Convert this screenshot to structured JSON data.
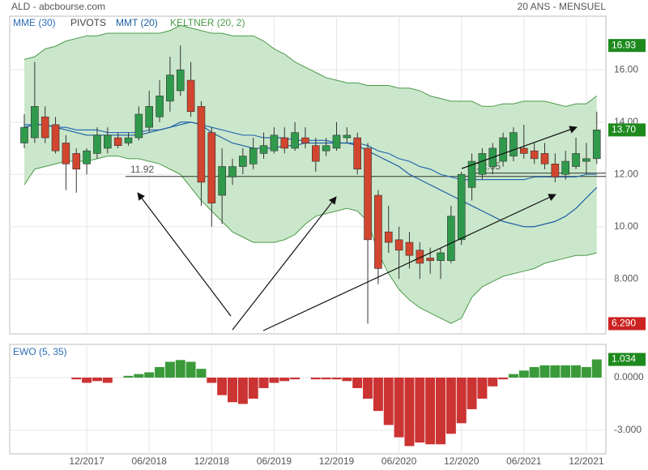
{
  "header": {
    "left": "ALD - abcbourse.com",
    "right": "20 ANS - MENSUEL"
  },
  "chart_data": {
    "type": "candlestick",
    "categories": [
      null,
      null,
      null,
      null,
      null,
      null,
      "12/2017",
      null,
      null,
      null,
      null,
      null,
      "06/2018",
      null,
      null,
      null,
      null,
      null,
      "12/2018",
      null,
      null,
      null,
      null,
      null,
      "06/2019",
      null,
      null,
      null,
      null,
      null,
      "12/2019",
      null,
      null,
      null,
      null,
      null,
      "06/2020",
      null,
      null,
      null,
      null,
      null,
      "12/2020",
      null,
      null,
      null,
      null,
      null,
      "06/2021",
      null,
      null,
      null,
      null,
      null,
      "12/2021",
      null
    ],
    "open": [
      13.2,
      13.4,
      14.2,
      13.9,
      13.2,
      12.8,
      12.4,
      12.8,
      13.0,
      13.4,
      13.2,
      13.4,
      13.8,
      14.2,
      14.8,
      15.2,
      15.6,
      14.6,
      13.6,
      11.2,
      11.9,
      12.3,
      12.4,
      12.8,
      12.9,
      13.4,
      13.0,
      13.4,
      13.1,
      12.9,
      13.0,
      13.4,
      13.4,
      13.0,
      11.2,
      9.8,
      9.5,
      9.4,
      9.1,
      8.8,
      8.7,
      8.7,
      9.5,
      11.5,
      12.0,
      12.3,
      12.5,
      12.7,
      13.0,
      12.9,
      12.8,
      12.4,
      12.0,
      12.3,
      12.5,
      12.6
    ],
    "high": [
      14.3,
      16.3,
      14.6,
      14.2,
      13.5,
      13.0,
      13.0,
      13.8,
      13.8,
      13.6,
      13.6,
      14.6,
      15.2,
      15.6,
      16.5,
      16.93,
      16.3,
      14.8,
      13.8,
      13.0,
      12.6,
      13.0,
      13.4,
      13.6,
      13.8,
      13.8,
      14.0,
      13.8,
      13.4,
      13.4,
      14.0,
      13.8,
      13.6,
      13.2,
      11.4,
      10.8,
      10.0,
      9.8,
      9.4,
      9.2,
      9.2,
      10.8,
      12.1,
      12.8,
      13.0,
      13.2,
      13.6,
      13.8,
      13.9,
      13.2,
      13.2,
      12.8,
      12.9,
      13.4,
      13.2,
      14.4
    ],
    "low": [
      13.0,
      13.2,
      13.2,
      12.8,
      11.4,
      11.3,
      12.0,
      12.6,
      12.8,
      13.0,
      13.1,
      13.3,
      13.6,
      14.0,
      14.4,
      15.0,
      14.2,
      10.8,
      10.0,
      10.1,
      11.6,
      12.0,
      12.2,
      12.6,
      12.8,
      12.8,
      12.9,
      13.0,
      12.1,
      12.7,
      12.9,
      13.2,
      12.0,
      6.29,
      7.8,
      9.0,
      8.0,
      8.4,
      8.0,
      8.2,
      8.0,
      8.6,
      9.3,
      11.0,
      11.8,
      12.0,
      12.3,
      12.5,
      12.6,
      12.4,
      12.2,
      11.7,
      11.8,
      12.2,
      12.0,
      12.4
    ],
    "close": [
      13.8,
      14.6,
      13.4,
      12.9,
      12.4,
      12.2,
      12.9,
      13.5,
      13.5,
      13.1,
      13.4,
      14.3,
      14.6,
      15.0,
      15.8,
      16.0,
      14.4,
      11.7,
      10.9,
      12.3,
      12.3,
      12.7,
      13.0,
      13.1,
      13.5,
      13.0,
      13.6,
      13.2,
      12.5,
      13.1,
      13.5,
      13.5,
      12.2,
      9.5,
      8.4,
      9.4,
      9.1,
      8.9,
      8.6,
      8.7,
      9.0,
      10.4,
      12.0,
      12.5,
      12.8,
      13.0,
      13.4,
      13.6,
      12.8,
      12.6,
      12.4,
      11.9,
      12.5,
      12.8,
      12.6,
      13.7
    ],
    "up_color": "#2f9a4c",
    "down_color": "#d2452e",
    "series": [
      {
        "name": "MME (30)",
        "color": "#2a6db5",
        "values": [
          13.9,
          13.9,
          13.9,
          13.8,
          13.8,
          13.7,
          13.7,
          13.7,
          13.6,
          13.6,
          13.6,
          13.6,
          13.7,
          13.7,
          13.8,
          13.9,
          14.0,
          13.9,
          13.8,
          13.7,
          13.6,
          13.5,
          13.5,
          13.4,
          13.4,
          13.4,
          13.3,
          13.3,
          13.3,
          13.3,
          13.2,
          13.2,
          13.2,
          13.1,
          12.9,
          12.8,
          12.6,
          12.5,
          12.3,
          12.2,
          12.0,
          11.9,
          11.8,
          11.8,
          11.8,
          11.8,
          11.8,
          11.8,
          11.8,
          11.9,
          11.9,
          11.9,
          11.9,
          11.9,
          12.0,
          12.0
        ]
      },
      {
        "name": "MMT (20)",
        "color": "#1f5fa3",
        "values": [
          13.8,
          13.9,
          13.9,
          13.8,
          13.7,
          13.6,
          13.5,
          13.5,
          13.5,
          13.5,
          13.5,
          13.5,
          13.6,
          13.7,
          13.8,
          14.0,
          14.0,
          13.9,
          13.6,
          13.4,
          13.2,
          13.1,
          13.0,
          13.0,
          13.0,
          13.1,
          13.1,
          13.2,
          13.2,
          13.2,
          13.2,
          13.2,
          13.1,
          12.9,
          12.7,
          12.5,
          12.3,
          12.0,
          11.8,
          11.6,
          11.4,
          11.2,
          11.0,
          10.8,
          10.6,
          10.4,
          10.2,
          10.1,
          10.0,
          10.0,
          10.1,
          10.2,
          10.4,
          10.7,
          11.1,
          11.5
        ]
      }
    ],
    "pivots": {
      "name": "PIVOTS",
      "color": "#333333",
      "levels": [
        11.92,
        12.05
      ]
    },
    "keltner": {
      "name": "KELTNER (20, 2)",
      "color": "#4a9a4a",
      "fill": "#cbe7cb",
      "upper": [
        16.4,
        16.5,
        16.8,
        16.9,
        17.1,
        17.2,
        17.3,
        17.3,
        17.4,
        17.4,
        17.4,
        17.4,
        17.4,
        17.4,
        17.5,
        17.7,
        17.6,
        17.5,
        17.4,
        17.4,
        17.3,
        17.3,
        17.3,
        17.1,
        16.8,
        16.6,
        16.3,
        16.1,
        15.9,
        15.7,
        15.6,
        15.5,
        15.5,
        15.4,
        15.4,
        15.4,
        15.3,
        15.3,
        15.2,
        15.0,
        14.9,
        14.8,
        14.8,
        14.8,
        14.6,
        14.6,
        14.7,
        14.7,
        14.8,
        14.8,
        14.8,
        14.7,
        14.6,
        14.7,
        14.7,
        15.0
      ],
      "lower": [
        11.6,
        12.2,
        12.3,
        12.4,
        12.5,
        12.5,
        12.5,
        12.6,
        12.7,
        12.7,
        12.6,
        12.6,
        12.5,
        12.4,
        12.2,
        12.0,
        11.5,
        11.0,
        10.6,
        10.2,
        9.8,
        9.6,
        9.4,
        9.4,
        9.4,
        9.5,
        9.7,
        10.1,
        10.4,
        10.5,
        10.6,
        10.7,
        10.6,
        10.2,
        9.0,
        8.2,
        7.6,
        7.2,
        6.9,
        6.7,
        6.5,
        6.3,
        6.5,
        7.3,
        7.7,
        7.9,
        8.1,
        8.2,
        8.3,
        8.4,
        8.6,
        8.7,
        8.8,
        8.9,
        8.9,
        9.0
      ]
    },
    "ylim": [
      5.9,
      18.05
    ],
    "yticks": [
      {
        "value": 16,
        "label": "16.00"
      },
      {
        "value": 14,
        "label": "14.00"
      },
      {
        "value": 12,
        "label": "12.00"
      },
      {
        "value": 10,
        "label": "10.00"
      },
      {
        "value": 8,
        "label": "8.000"
      }
    ],
    "price_tags": [
      {
        "value": 16.93,
        "color": "#1e8a1e"
      },
      {
        "value": 13.7,
        "label": "13.70",
        "color": "#1e8a1e"
      },
      {
        "value": 6.29,
        "label": "6.290",
        "color": "#cc2222"
      }
    ],
    "grid": true,
    "ewo": {
      "name": "EWO (5, 35)",
      "up_color": "#3a9a3a",
      "down_color": "#cc3333",
      "values": [
        null,
        null,
        null,
        null,
        null,
        -0.1,
        -0.3,
        -0.2,
        -0.3,
        0,
        0.1,
        0.2,
        0.3,
        0.6,
        0.9,
        1.0,
        0.9,
        0.5,
        -0.3,
        -1.0,
        -1.4,
        -1.5,
        -1.2,
        -0.6,
        -0.3,
        -0.2,
        -0.1,
        0,
        -0.1,
        -0.1,
        -0.1,
        -0.2,
        -0.6,
        -1.2,
        -1.9,
        -2.7,
        -3.4,
        -3.9,
        -3.7,
        -3.8,
        -3.8,
        -3.2,
        -2.6,
        -1.8,
        -1.2,
        -0.5,
        -0.1,
        0.2,
        0.4,
        0.6,
        0.7,
        0.7,
        0.7,
        0.7,
        0.6,
        1.034
      ],
      "ylim": [
        -4.34,
        1.89
      ],
      "yticks": [
        {
          "value": 0,
          "label": "0.0000"
        },
        {
          "value": -3,
          "label": "-3.000"
        }
      ],
      "tag": {
        "value": 1.034,
        "color": "#1e8a1e"
      }
    }
  }
}
